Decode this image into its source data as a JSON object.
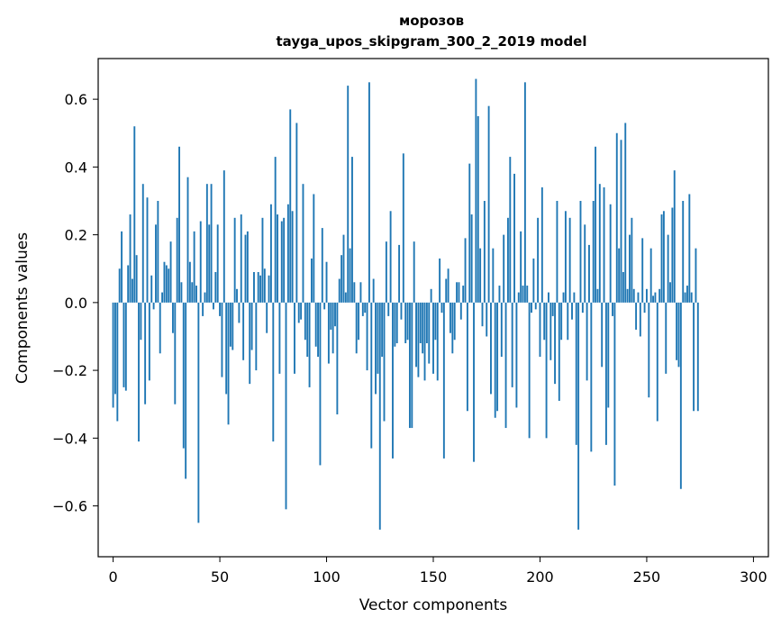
{
  "chart_data": {
    "type": "bar",
    "title": "морозов",
    "subtitle": "tayga_upos_skipgram_300_2_2019 model",
    "xlabel": "Vector components",
    "ylabel": "Components values",
    "xlim": [
      -7,
      307
    ],
    "ylim": [
      -0.75,
      0.72
    ],
    "xticks": [
      0,
      50,
      100,
      150,
      200,
      250,
      300
    ],
    "yticks": [
      -0.6,
      -0.4,
      -0.2,
      0.0,
      0.2,
      0.4,
      0.6
    ],
    "xtick_labels": [
      "0",
      "50",
      "100",
      "150",
      "200",
      "250",
      "300"
    ],
    "ytick_labels": [
      "−0.6",
      "−0.4",
      "−0.2",
      "0.0",
      "0.2",
      "0.4",
      "0.6"
    ],
    "color": "#1f77b4",
    "x_start": 0,
    "values": [
      -0.31,
      -0.27,
      -0.35,
      0.1,
      0.21,
      -0.25,
      -0.26,
      0.11,
      0.26,
      0.07,
      0.52,
      0.14,
      -0.41,
      -0.11,
      0.35,
      -0.3,
      0.31,
      -0.23,
      0.08,
      -0.02,
      0.23,
      0.3,
      -0.15,
      0.03,
      0.12,
      0.11,
      0.1,
      0.18,
      -0.09,
      -0.3,
      0.25,
      0.46,
      0.06,
      -0.43,
      -0.52,
      0.37,
      0.12,
      0.06,
      0.21,
      0.05,
      -0.65,
      0.24,
      -0.04,
      0.03,
      0.35,
      0.23,
      0.35,
      -0.02,
      0.09,
      0.23,
      -0.04,
      -0.22,
      0.39,
      -0.27,
      -0.36,
      -0.13,
      -0.14,
      0.25,
      0.04,
      -0.06,
      0.26,
      -0.17,
      0.2,
      0.21,
      -0.24,
      -0.14,
      0.09,
      -0.2,
      0.09,
      0.08,
      0.25,
      0.1,
      -0.09,
      0.08,
      0.29,
      -0.41,
      0.43,
      0.26,
      -0.21,
      0.24,
      0.25,
      -0.61,
      0.29,
      0.57,
      0.27,
      -0.21,
      0.53,
      -0.06,
      -0.05,
      0.35,
      -0.11,
      -0.16,
      -0.25,
      0.13,
      0.32,
      -0.13,
      -0.16,
      -0.48,
      0.22,
      -0.02,
      0.12,
      -0.18,
      -0.08,
      -0.15,
      -0.07,
      -0.33,
      0.07,
      0.14,
      0.2,
      0.03,
      0.64,
      0.16,
      0.43,
      0.06,
      -0.15,
      -0.11,
      0.06,
      -0.04,
      -0.03,
      -0.2,
      0.65,
      -0.43,
      0.07,
      -0.27,
      -0.21,
      -0.67,
      -0.16,
      -0.35,
      0.18,
      -0.04,
      0.27,
      -0.46,
      -0.13,
      -0.12,
      0.17,
      -0.05,
      0.44,
      -0.12,
      -0.11,
      -0.37,
      -0.37,
      0.18,
      -0.19,
      -0.22,
      -0.12,
      -0.15,
      -0.23,
      -0.12,
      -0.18,
      0.04,
      -0.21,
      -0.11,
      -0.23,
      0.13,
      -0.03,
      -0.46,
      0.07,
      0.1,
      -0.09,
      -0.15,
      -0.11,
      0.06,
      0.06,
      -0.05,
      0.05,
      0.19,
      -0.32,
      0.41,
      0.26,
      -0.47,
      0.66,
      0.55,
      0.16,
      -0.07,
      0.3,
      -0.1,
      0.58,
      -0.27,
      0.16,
      -0.34,
      -0.32,
      0.05,
      -0.16,
      0.2,
      -0.37,
      0.25,
      0.43,
      -0.25,
      0.38,
      -0.31,
      0.03,
      0.21,
      0.05,
      0.65,
      0.05,
      -0.4,
      -0.03,
      0.13,
      -0.02,
      0.25,
      -0.16,
      0.34,
      -0.11,
      -0.4,
      0.03,
      -0.17,
      -0.04,
      -0.24,
      0.3,
      -0.29,
      -0.11,
      0.03,
      0.27,
      -0.11,
      0.25,
      -0.05,
      0.03,
      -0.42,
      -0.67,
      0.3,
      -0.03,
      0.23,
      -0.23,
      0.17,
      -0.44,
      0.3,
      0.46,
      0.04,
      0.35,
      -0.19,
      0.34,
      -0.42,
      -0.31,
      0.29,
      -0.04,
      -0.54,
      0.5,
      0.16,
      0.48,
      0.09,
      0.53,
      0.04,
      0.2,
      0.25,
      0.04,
      -0.08,
      0.03,
      -0.1,
      0.19,
      -0.03,
      0.04,
      -0.28,
      0.16,
      0.02,
      0.03,
      -0.35,
      0.04,
      0.26,
      0.27,
      -0.21,
      0.2,
      0.06,
      0.28,
      0.39,
      -0.17,
      -0.19,
      -0.55,
      0.3,
      0.03,
      0.05,
      0.32,
      0.03,
      -0.32,
      0.16,
      -0.32
    ]
  }
}
